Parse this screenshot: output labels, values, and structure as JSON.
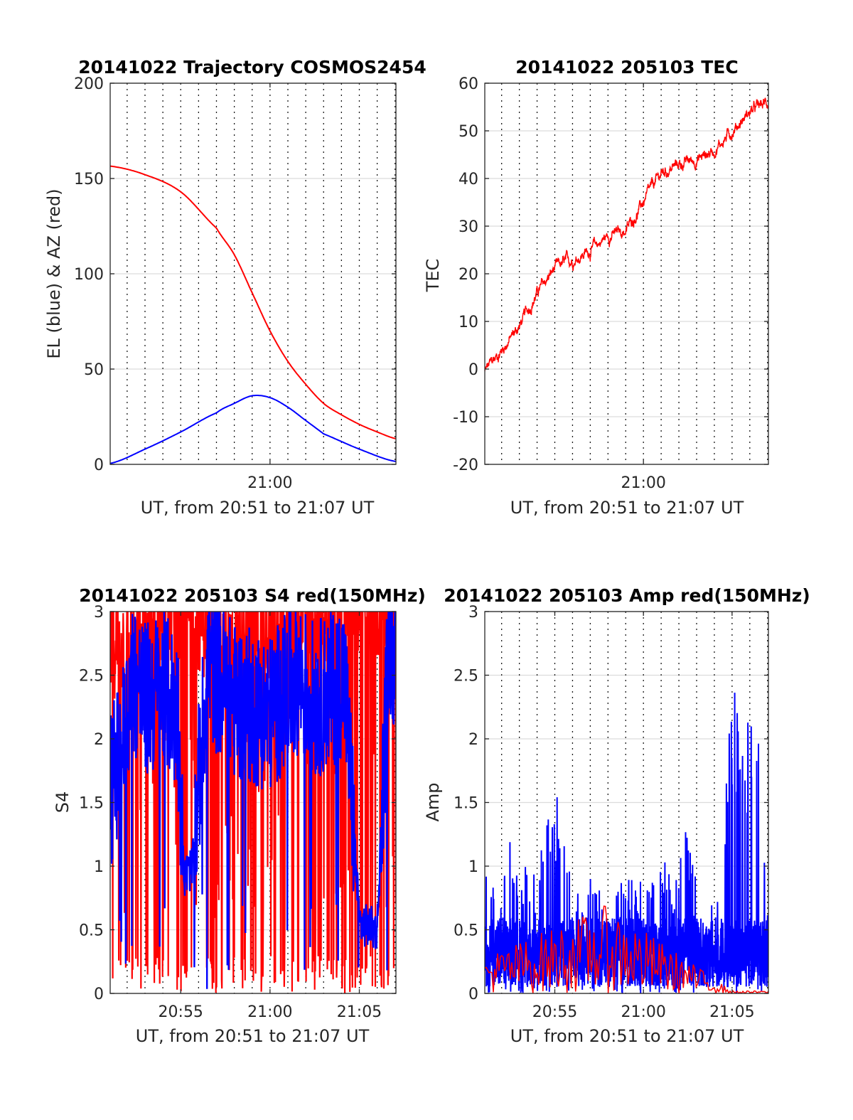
{
  "colors": {
    "blue": "#0000ff",
    "red": "#ff0000",
    "grid": "#dcdcdc",
    "axis": "#262626"
  },
  "chart_data": [
    {
      "type": "line",
      "title": "20141022 Trajectory COSMOS2454",
      "xlabel": "UT, from 20:51 to 21:07 UT",
      "ylabel": "EL (blue) & AZ (red)",
      "xlim": [
        "20:51:03",
        "21:07:03"
      ],
      "ylim": [
        0,
        200
      ],
      "yticks": [
        0,
        50,
        100,
        150,
        200
      ],
      "xticks": [
        "21:00"
      ],
      "grid": "minor vertical dotted lines every minute",
      "series": [
        {
          "name": "AZ",
          "color": "#ff0000",
          "x": [
            "20:51:03",
            "20:53:00",
            "20:55:00",
            "20:57:00",
            "20:58:00",
            "20:59:00",
            "21:00:00",
            "21:01:00",
            "21:02:00",
            "21:03:00",
            "21:04:00",
            "21:05:00",
            "21:06:00",
            "21:07:03"
          ],
          "values": [
            156.5,
            152,
            143,
            124,
            110,
            90,
            70,
            54,
            42,
            32,
            26,
            21,
            17,
            13.5
          ]
        },
        {
          "name": "EL",
          "color": "#0000ff",
          "x": [
            "20:51:03",
            "20:53:00",
            "20:55:00",
            "20:57:00",
            "20:58:00",
            "20:59:00",
            "21:00:00",
            "21:01:00",
            "21:02:00",
            "21:03:00",
            "21:05:00",
            "21:07:03"
          ],
          "values": [
            0.5,
            8,
            17,
            27,
            32,
            36,
            35,
            30,
            23,
            16,
            8,
            1.5
          ]
        }
      ]
    },
    {
      "type": "line",
      "title": "20141022 205103 TEC",
      "xlabel": "UT, from 20:51 to 21:07 UT",
      "ylabel": "TEC",
      "xlim": [
        "20:51:03",
        "21:07:03"
      ],
      "ylim": [
        -20,
        60
      ],
      "yticks": [
        -20,
        -10,
        0,
        10,
        20,
        30,
        40,
        50,
        60
      ],
      "xticks": [
        "21:00"
      ],
      "series": [
        {
          "name": "TEC",
          "color": "#ff0000",
          "x": [
            "20:51:03",
            "20:52:00",
            "20:53:00",
            "20:54:00",
            "20:55:00",
            "20:56:00",
            "20:57:00",
            "20:58:00",
            "20:59:00",
            "21:00:00",
            "21:01:00",
            "21:02:00",
            "21:03:00",
            "21:04:00",
            "21:05:00",
            "21:06:00",
            "21:07:03"
          ],
          "values": [
            -0.5,
            4,
            9,
            16,
            21,
            23,
            25,
            28,
            29,
            35,
            41,
            43,
            44,
            46,
            50,
            54,
            56
          ]
        }
      ]
    },
    {
      "type": "line",
      "title": "20141022 205103 S4 red(150MHz)",
      "xlabel": "UT, from 20:51 to 21:07 UT",
      "ylabel": "S4",
      "xlim": [
        "20:51:03",
        "21:07:03"
      ],
      "ylim": [
        0,
        3
      ],
      "yticks": [
        "0",
        "0.5",
        "1",
        "1.5",
        "2",
        "2.5",
        "3"
      ],
      "xticks": [
        "20:55",
        "21:00",
        "21:05"
      ],
      "series": [
        {
          "name": "red (150MHz)",
          "color": "#ff0000",
          "envelope": "noisy, frequent drops to 0",
          "x": [
            "20:51:03",
            "20:52:30",
            "20:54:00",
            "20:55:00",
            "20:56:00",
            "20:57:30",
            "20:59:00",
            "21:00:30",
            "21:02:00",
            "21:03:30",
            "21:05:00",
            "21:07:03"
          ],
          "values": [
            2.6,
            2.5,
            2.8,
            2.9,
            2.8,
            2.5,
            2.7,
            2.6,
            2.8,
            2.9,
            2.9,
            2.9
          ]
        },
        {
          "color": "#0000ff",
          "x": [
            "20:51:03",
            "20:51:40",
            "20:52:20",
            "20:53:00",
            "20:54:00",
            "20:54:50",
            "20:55:10",
            "20:55:40",
            "20:56:30",
            "20:58:00",
            "21:00:00",
            "21:01:30",
            "21:02:30",
            "21:03:30",
            "21:04:10",
            "21:05:00",
            "21:06:00",
            "21:06:40",
            "21:07:03"
          ],
          "values": [
            1.6,
            1.9,
            2.5,
            2.3,
            2.4,
            2.2,
            0.9,
            1.0,
            2.6,
            2.3,
            2.2,
            2.5,
            2.3,
            2.4,
            2.5,
            0.55,
            0.5,
            2.8,
            2.7
          ]
        }
      ]
    },
    {
      "type": "line",
      "title": "20141022 205103 Amp red(150MHz)",
      "xlabel": "UT, from 20:51 to 21:07 UT",
      "ylabel": "Amp",
      "xlim": [
        "20:51:03",
        "21:07:03"
      ],
      "ylim": [
        0,
        3
      ],
      "yticks": [
        "0",
        "0.5",
        "1",
        "1.5",
        "2",
        "2.5",
        "3"
      ],
      "xticks": [
        "20:55",
        "21:00",
        "21:05"
      ],
      "series": [
        {
          "color": "#0000ff",
          "envelope": "noisy, base 0 to ~0.6",
          "x": [
            "20:51:03",
            "20:52:00",
            "20:52:30",
            "20:53:00",
            "20:54:00",
            "20:54:40",
            "20:55:10",
            "20:56:00",
            "20:57:00",
            "20:58:00",
            "20:59:00",
            "21:00:00",
            "21:01:00",
            "21:02:00",
            "21:02:20",
            "21:03:00",
            "21:04:00",
            "21:04:40",
            "21:05:00",
            "21:05:40",
            "21:06:20",
            "21:07:03"
          ],
          "values": [
            1.0,
            0.8,
            1.48,
            1.1,
            1.0,
            1.4,
            1.65,
            0.8,
            0.9,
            0.8,
            0.9,
            0.9,
            1.1,
            1.0,
            1.35,
            0.9,
            0.7,
            1.8,
            2.5,
            2.0,
            2.4,
            0.6
          ]
        },
        {
          "name": "red (150MHz)",
          "color": "#ff0000",
          "x": [
            "20:51:03",
            "20:58:00",
            "21:05:00",
            "21:07:03"
          ],
          "values": [
            0.3,
            0.7,
            0.02,
            0.02
          ]
        }
      ]
    }
  ]
}
